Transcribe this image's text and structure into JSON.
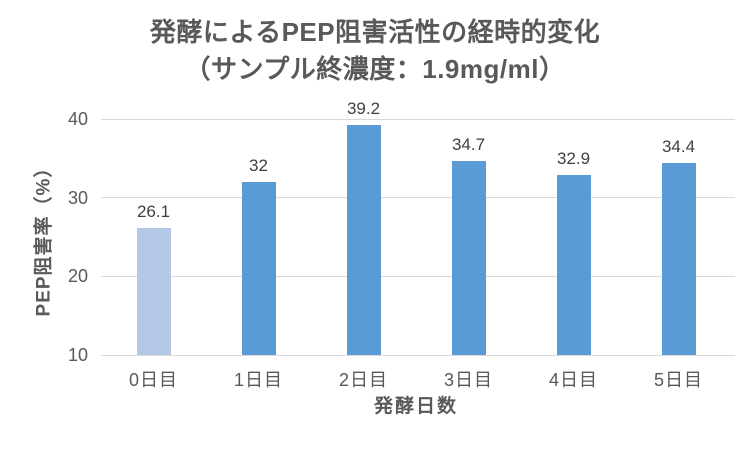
{
  "chart_data": {
    "type": "bar",
    "title": "発酵によるPEP阻害活性の経時的変化（サンプル終濃度：1.9mg/ml）",
    "title_line1": "発酵によるPEP阻害活性の経時的変化",
    "title_line2": "（サンプル終濃度：1.9mg/ml）",
    "xlabel": "発酵日数",
    "ylabel": "PEP阻害率（%）",
    "categories": [
      "0日目",
      "1日目",
      "2日目",
      "3日目",
      "4日目",
      "5日目"
    ],
    "values": [
      26.1,
      32,
      39.2,
      34.7,
      32.9,
      34.4
    ],
    "value_labels": [
      "26.1",
      "32",
      "39.2",
      "34.7",
      "32.9",
      "34.4"
    ],
    "ylim": [
      10,
      40
    ],
    "yticks": [
      10,
      20,
      30,
      40
    ],
    "grid": true,
    "legend": "none",
    "bar_colors": [
      "#b4c7e7",
      "#5b9bd5",
      "#5b9bd5",
      "#5b9bd5",
      "#5b9bd5",
      "#5b9bd5"
    ]
  },
  "colors": {
    "bar_highlight": "#b4c7e7",
    "bar_default": "#5b9bd5",
    "gridline": "#d9d9d9",
    "axis_text": "#595959",
    "data_label_text": "#404040",
    "background": "#ffffff"
  }
}
